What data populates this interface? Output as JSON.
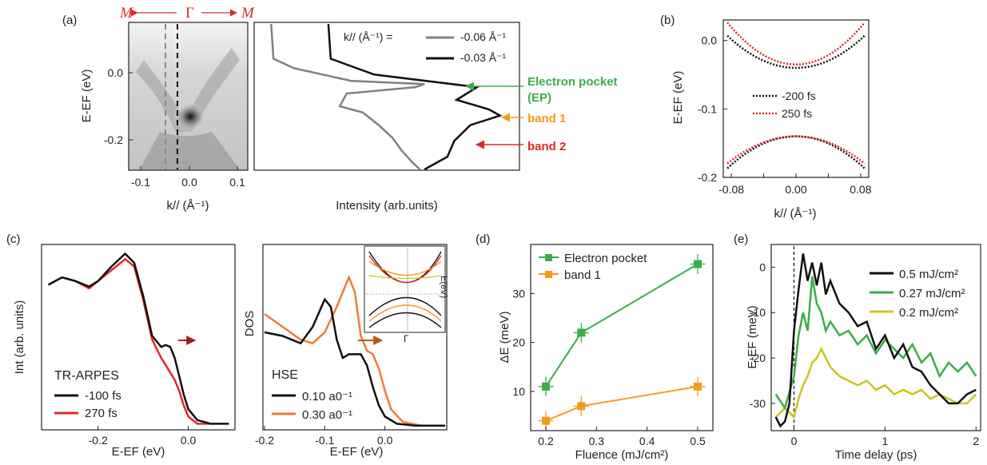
{
  "colors": {
    "black": "#111111",
    "gray": "#808080",
    "red": "#e0282b",
    "green": "#3aad48",
    "orange": "#f39a1d",
    "yellow": "#c9c51e",
    "dark_red": "#a02020",
    "hse_orange": "#f07a3a"
  },
  "panel_a": {
    "label": "(a)",
    "path_left": "M",
    "path_mid": "Γ",
    "path_right": "M",
    "xlabel": "k// (Å⁻¹)",
    "ylabel": "E-EF (eV)",
    "xticks": [
      "-0.1",
      "0.0",
      "0.1"
    ],
    "yticks": [
      "0.0",
      "-0.2"
    ],
    "edc_xlabel": "Intensity (arb.units)",
    "legend_title": "k// (Å⁻¹) =",
    "legend_items": [
      "-0.06 Å⁻¹",
      "-0.03 Å⁻¹"
    ],
    "annot_ep": "Electron pocket",
    "annot_ep2": "(EP)",
    "annot_band1": "band 1",
    "annot_band2": "band 2"
  },
  "panel_b": {
    "label": "(b)",
    "xlabel": "k// (Å⁻¹)",
    "ylabel": "E-EF (eV)",
    "xticks": [
      "-0.08",
      "-0.04",
      "0.00",
      "0.04",
      "0.08"
    ],
    "yticks": [
      "0.0",
      "-0.1",
      "-0.2"
    ],
    "legend_items": [
      "-200 fs",
      "250 fs"
    ]
  },
  "panel_c": {
    "label": "(c)",
    "left_ylabel": "Int (arb. units)",
    "left_xlabel": "E-EF (eV)",
    "left_xticks": [
      "-0.2",
      "0.0"
    ],
    "left_legend_title": "TR-ARPES",
    "left_legend": [
      "-100 fs",
      "270 fs"
    ],
    "right_ylabel": "DOS",
    "right_xlabel": "E-EF (eV)",
    "right_xticks": [
      "-0.2",
      "-0.1",
      "0.0"
    ],
    "right_legend_title": "HSE",
    "right_legend": [
      "0.10 a0⁻¹",
      "0.30 a0⁻¹"
    ],
    "inset_ylabel": "E(eV)",
    "inset_xlabel": "Γ"
  },
  "panel_d": {
    "label": "(d)",
    "xlabel": "Fluence (mJ/cm²)",
    "ylabel": "ΔE (meV)",
    "xticks": [
      "0.2",
      "0.3",
      "0.4",
      "0.5"
    ],
    "yticks": [
      "10",
      "20",
      "30"
    ],
    "legend": [
      "Electron pocket",
      "band 1"
    ]
  },
  "panel_e": {
    "label": "(e)",
    "xlabel": "Time delay (ps)",
    "ylabel": "E-EF (meV)",
    "xticks": [
      "0",
      "1",
      "2"
    ],
    "yticks": [
      "0",
      "-10",
      "-20",
      "-30"
    ],
    "legend": [
      "0.5 mJ/cm²",
      "0.27 mJ/cm²",
      "0.2 mJ/cm²"
    ]
  },
  "chart_data": [
    {
      "panel": "a-right",
      "type": "line",
      "xlabel": "Intensity (arb.units)",
      "ylim": [
        -0.3,
        0.16
      ],
      "series": [
        {
          "name": "-0.06 Å⁻¹",
          "points": [
            [
              0.05,
              0.16
            ],
            [
              0.06,
              0.05
            ],
            [
              0.15,
              0.02
            ],
            [
              0.4,
              -0.02
            ],
            [
              0.72,
              -0.03
            ],
            [
              0.68,
              -0.04
            ],
            [
              0.38,
              -0.06
            ],
            [
              0.35,
              -0.1
            ],
            [
              0.45,
              -0.12
            ],
            [
              0.52,
              -0.16
            ],
            [
              0.58,
              -0.2
            ],
            [
              0.62,
              -0.24
            ],
            [
              0.67,
              -0.28
            ],
            [
              0.7,
              -0.3
            ]
          ]
        },
        {
          "name": "-0.03 Å⁻¹",
          "points": [
            [
              0.3,
              0.16
            ],
            [
              0.31,
              0.05
            ],
            [
              0.5,
              0.0
            ],
            [
              0.95,
              -0.04
            ],
            [
              0.86,
              -0.08
            ],
            [
              1.0,
              -0.11
            ],
            [
              1.05,
              -0.13
            ],
            [
              0.92,
              -0.16
            ],
            [
              0.85,
              -0.21
            ],
            [
              0.82,
              -0.26
            ],
            [
              0.72,
              -0.3
            ]
          ]
        }
      ]
    },
    {
      "panel": "b",
      "type": "line",
      "xlim": [
        -0.09,
        0.09
      ],
      "ylim": [
        -0.2,
        0.03
      ],
      "series": [
        {
          "name": "-200 fs",
          "upper": {
            "a": 6.5,
            "c": -0.04
          },
          "lower": {
            "a": -6.5,
            "c": -0.14
          }
        },
        {
          "name": "250 fs",
          "upper": {
            "a": 8.5,
            "c": -0.035
          },
          "lower": {
            "a": -5.5,
            "c": -0.14
          }
        }
      ]
    },
    {
      "panel": "c-left",
      "type": "line",
      "xlim": [
        -0.32,
        0.1
      ],
      "series": [
        {
          "name": "-100 fs",
          "x": [
            -0.31,
            -0.28,
            -0.25,
            -0.22,
            -0.2,
            -0.17,
            -0.14,
            -0.12,
            -0.1,
            -0.08,
            -0.06,
            -0.05,
            -0.04,
            -0.03,
            -0.02,
            -0.01,
            0.0,
            0.02,
            0.05,
            0.08,
            0.09
          ],
          "y": [
            0.78,
            0.82,
            0.8,
            0.77,
            0.8,
            0.88,
            0.95,
            0.9,
            0.72,
            0.5,
            0.44,
            0.45,
            0.44,
            0.38,
            0.28,
            0.18,
            0.1,
            0.04,
            0.02,
            0.02,
            0.02
          ]
        },
        {
          "name": "270 fs",
          "x": [
            -0.31,
            -0.28,
            -0.25,
            -0.22,
            -0.2,
            -0.17,
            -0.14,
            -0.12,
            -0.1,
            -0.08,
            -0.06,
            -0.05,
            -0.04,
            -0.03,
            -0.02,
            -0.01,
            0.0,
            0.02,
            0.05
          ],
          "y": [
            0.78,
            0.82,
            0.8,
            0.76,
            0.8,
            0.86,
            0.92,
            0.88,
            0.7,
            0.48,
            0.38,
            0.34,
            0.3,
            0.26,
            0.2,
            0.12,
            0.06,
            0.02,
            0.02
          ]
        }
      ]
    },
    {
      "panel": "c-right",
      "type": "line",
      "xlim": [
        -0.2,
        0.1
      ],
      "series": [
        {
          "name": "0.10 a0⁻¹",
          "x": [
            -0.2,
            -0.17,
            -0.14,
            -0.12,
            -0.1,
            -0.09,
            -0.08,
            -0.07,
            -0.06,
            -0.04,
            -0.03,
            -0.02,
            -0.01,
            0.0,
            0.02,
            0.05,
            0.1
          ],
          "y": [
            0.52,
            0.5,
            0.46,
            0.55,
            0.7,
            0.66,
            0.48,
            0.38,
            0.4,
            0.4,
            0.34,
            0.22,
            0.12,
            0.06,
            0.02,
            0.01,
            0.01
          ]
        },
        {
          "name": "0.30 a0⁻¹",
          "x": [
            -0.2,
            -0.17,
            -0.14,
            -0.12,
            -0.1,
            -0.08,
            -0.06,
            -0.05,
            -0.04,
            -0.03,
            -0.02,
            -0.01,
            0.0,
            0.01,
            0.03,
            0.06,
            0.1
          ],
          "y": [
            0.62,
            0.55,
            0.48,
            0.46,
            0.52,
            0.66,
            0.82,
            0.74,
            0.5,
            0.42,
            0.4,
            0.32,
            0.2,
            0.1,
            0.03,
            0.01,
            0.01
          ]
        }
      ]
    },
    {
      "panel": "d",
      "type": "scatter",
      "xlabel": "Fluence (mJ/cm²)",
      "ylabel": "ΔE (meV)",
      "xlim": [
        0.17,
        0.53
      ],
      "ylim": [
        2,
        40
      ],
      "series": [
        {
          "name": "Electron pocket",
          "x": [
            0.2,
            0.27,
            0.5
          ],
          "y": [
            11,
            22,
            36
          ],
          "yerr": 2,
          "xerr": 0.015
        },
        {
          "name": "band 1",
          "x": [
            0.2,
            0.27,
            0.5
          ],
          "y": [
            4,
            7,
            11
          ],
          "yerr": 2,
          "xerr": 0.015
        }
      ]
    },
    {
      "panel": "e",
      "type": "line",
      "xlabel": "Time delay (ps)",
      "ylabel": "E-EF (meV)",
      "xlim": [
        -0.25,
        2.05
      ],
      "ylim": [
        -36,
        5
      ],
      "series": [
        {
          "name": "0.5 mJ/cm²",
          "x": [
            -0.2,
            -0.15,
            -0.1,
            -0.05,
            0,
            0.05,
            0.1,
            0.15,
            0.2,
            0.25,
            0.3,
            0.35,
            0.4,
            0.5,
            0.6,
            0.7,
            0.8,
            0.9,
            1.0,
            1.1,
            1.2,
            1.3,
            1.4,
            1.5,
            1.6,
            1.7,
            1.8,
            1.9,
            2.0
          ],
          "y": [
            -33,
            -35,
            -34,
            -30,
            -14,
            -5,
            3,
            -3,
            1,
            -4,
            1,
            -6,
            -3,
            -8,
            -10,
            -13,
            -12,
            -18,
            -15,
            -20,
            -17,
            -22,
            -23,
            -26,
            -28,
            -30,
            -30,
            -28,
            -27
          ]
        },
        {
          "name": "0.27 mJ/cm²",
          "x": [
            -0.2,
            -0.1,
            0,
            0.05,
            0.1,
            0.15,
            0.2,
            0.25,
            0.3,
            0.35,
            0.4,
            0.5,
            0.6,
            0.7,
            0.8,
            0.9,
            1.0,
            1.1,
            1.2,
            1.3,
            1.4,
            1.5,
            1.6,
            1.7,
            1.8,
            1.9,
            2.0
          ],
          "y": [
            -28,
            -31,
            -24,
            -15,
            -10,
            -14,
            -2,
            -8,
            -10,
            -14,
            -12,
            -15,
            -14,
            -17,
            -15,
            -19,
            -16,
            -18,
            -20,
            -17,
            -21,
            -19,
            -24,
            -21,
            -23,
            -21,
            -24
          ]
        },
        {
          "name": "0.2 mJ/cm²",
          "x": [
            -0.2,
            -0.1,
            0,
            0.05,
            0.1,
            0.15,
            0.2,
            0.25,
            0.3,
            0.4,
            0.5,
            0.6,
            0.7,
            0.8,
            0.9,
            1.0,
            1.1,
            1.2,
            1.3,
            1.4,
            1.5,
            1.6,
            1.7,
            1.8,
            1.9,
            2.0
          ],
          "y": [
            -33,
            -31,
            -33,
            -29,
            -26,
            -24,
            -21,
            -20,
            -18,
            -22,
            -24,
            -25,
            -26,
            -25,
            -27,
            -26,
            -28,
            -27,
            -28,
            -27,
            -29,
            -28,
            -29,
            -30,
            -30,
            -28
          ]
        }
      ]
    }
  ]
}
